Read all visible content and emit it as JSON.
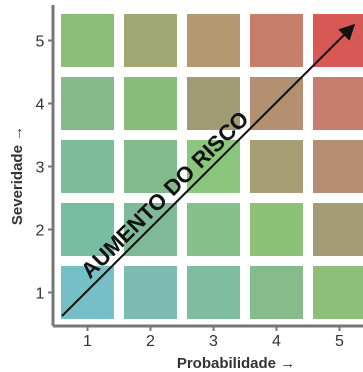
{
  "chart_data": {
    "type": "heatmap",
    "x_axis": {
      "label": "Probabilidade →",
      "ticks": [
        "1",
        "2",
        "3",
        "4",
        "5"
      ]
    },
    "y_axis": {
      "label": "Severidade →",
      "ticks": [
        "1",
        "2",
        "3",
        "4",
        "5"
      ]
    },
    "annotation": {
      "text": "AUMENTO DO RISCO",
      "arrow_from": [
        1,
        1
      ],
      "arrow_to": [
        5,
        5
      ]
    },
    "grid": false,
    "cells": [
      {
        "x": 1,
        "y": 5,
        "color": "#8dbd78"
      },
      {
        "x": 2,
        "y": 5,
        "color": "#9fa775"
      },
      {
        "x": 3,
        "y": 5,
        "color": "#b39872"
      },
      {
        "x": 4,
        "y": 5,
        "color": "#c67d6a"
      },
      {
        "x": 5,
        "y": 5,
        "color": "#d65956"
      },
      {
        "x": 1,
        "y": 4,
        "color": "#86ba8a"
      },
      {
        "x": 2,
        "y": 4,
        "color": "#88bc78"
      },
      {
        "x": 3,
        "y": 4,
        "color": "#a09b73"
      },
      {
        "x": 4,
        "y": 4,
        "color": "#b29071"
      },
      {
        "x": 5,
        "y": 4,
        "color": "#c77e6d"
      },
      {
        "x": 1,
        "y": 3,
        "color": "#7cbc9a"
      },
      {
        "x": 2,
        "y": 3,
        "color": "#82ba8b"
      },
      {
        "x": 3,
        "y": 3,
        "color": "#8cc57d"
      },
      {
        "x": 4,
        "y": 3,
        "color": "#a59f73"
      },
      {
        "x": 5,
        "y": 3,
        "color": "#b58d70"
      },
      {
        "x": 1,
        "y": 2,
        "color": "#79bca4"
      },
      {
        "x": 2,
        "y": 2,
        "color": "#80b99a"
      },
      {
        "x": 3,
        "y": 2,
        "color": "#85bf89"
      },
      {
        "x": 4,
        "y": 2,
        "color": "#8cc276"
      },
      {
        "x": 5,
        "y": 2,
        "color": "#a39c74"
      },
      {
        "x": 1,
        "y": 1,
        "color": "#75bfc7"
      },
      {
        "x": 2,
        "y": 1,
        "color": "#7dbab0"
      },
      {
        "x": 3,
        "y": 1,
        "color": "#80bca1"
      },
      {
        "x": 4,
        "y": 1,
        "color": "#86bc8c"
      },
      {
        "x": 5,
        "y": 1,
        "color": "#8fbe79"
      }
    ],
    "colors": {
      "axis": "#777777",
      "arrow": "#111111",
      "tick_text": "#333333",
      "axis_label": "#333333",
      "annotation_text": "#111111"
    }
  }
}
